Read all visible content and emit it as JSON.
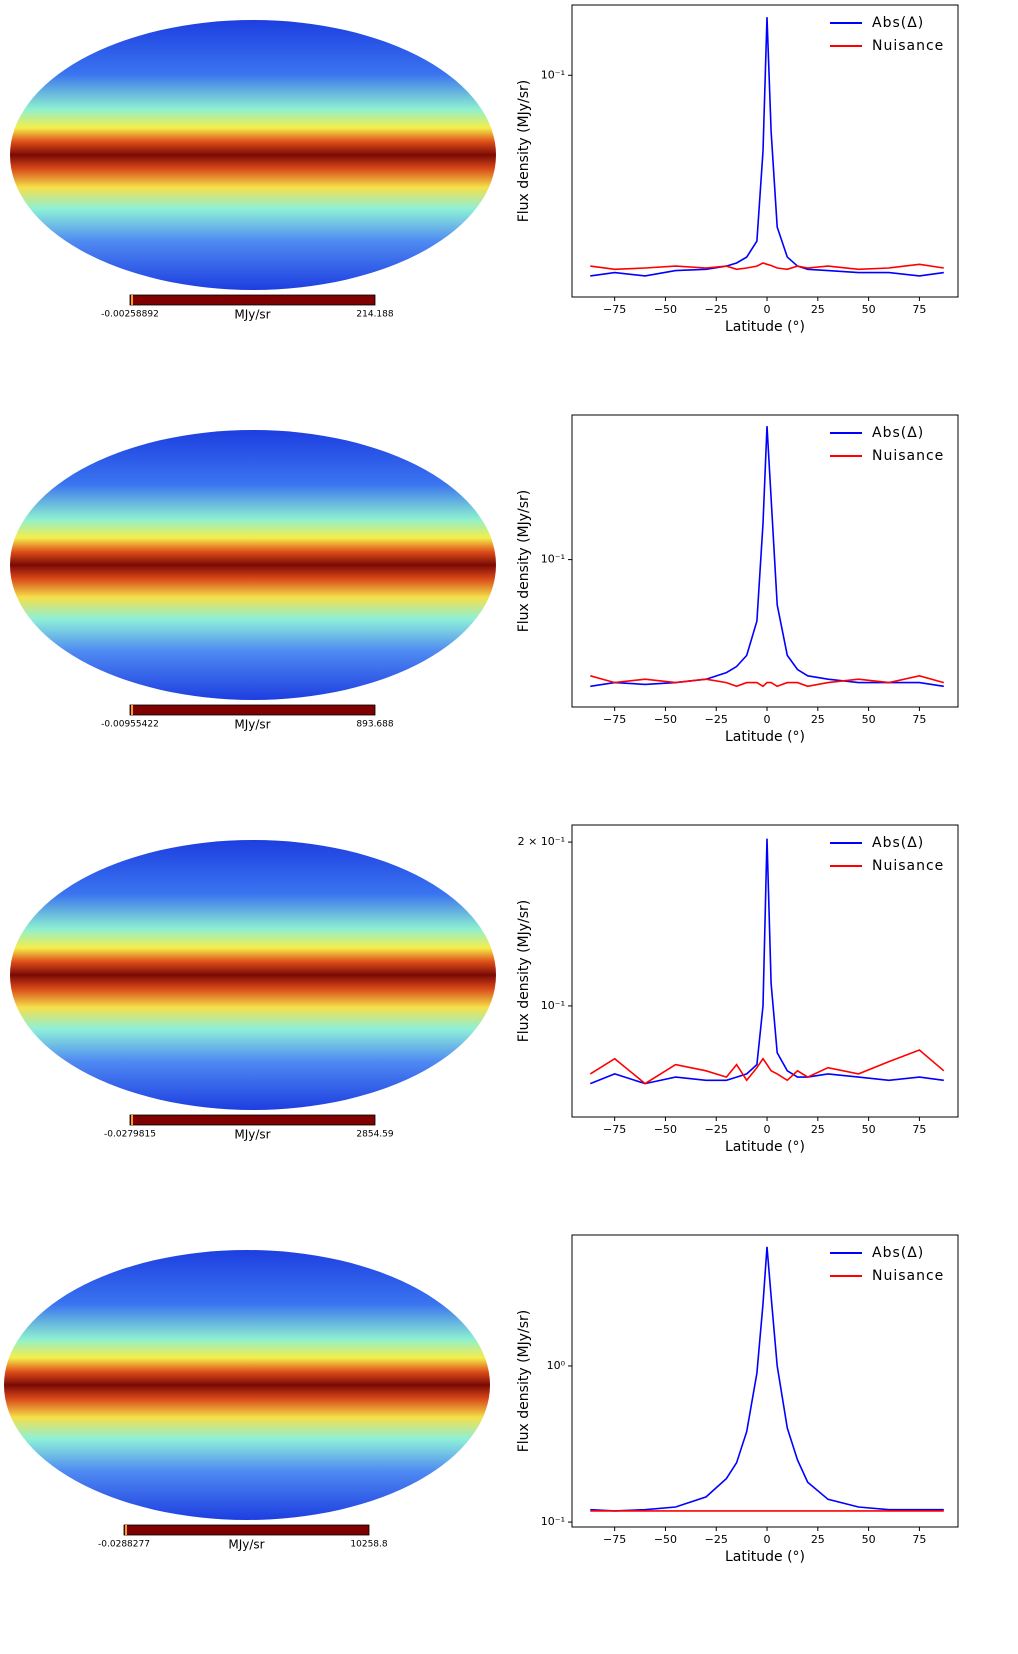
{
  "maps": [
    {
      "min_label": "-0.00258892",
      "unit": "MJy/sr",
      "max_label": "214.188"
    },
    {
      "min_label": "-0.00955422",
      "unit": "MJy/sr",
      "max_label": "893.688"
    },
    {
      "min_label": "-0.0279815",
      "unit": "MJy/sr",
      "max_label": "2854.59"
    },
    {
      "min_label": "-0.0288277",
      "unit": "MJy/sr",
      "max_label": "10258.8"
    }
  ],
  "chart_data": [
    {
      "type": "line",
      "log_y": true,
      "legend": "upper right",
      "xlabel": "Latitude (°)",
      "ylabel": "Flux density (MJy/sr)",
      "x": [
        -87,
        -75,
        -60,
        -45,
        -30,
        -20,
        -15,
        -10,
        -5,
        -2,
        0,
        2,
        5,
        10,
        15,
        20,
        30,
        45,
        60,
        75,
        87
      ],
      "xlim": [
        -96,
        94
      ],
      "xticks": [
        {
          "value": -75,
          "label": "−75"
        },
        {
          "value": -50,
          "label": "−50"
        },
        {
          "value": -25,
          "label": "−25"
        },
        0,
        25,
        50,
        75
      ],
      "ylim": [
        0.0132,
        0.19
      ],
      "yticks": [
        {
          "value": 0.1,
          "label": "10⁻¹"
        }
      ],
      "series": [
        {
          "name": "Abs(Δ)",
          "color": "#0000ff",
          "values": [
            0.016,
            0.0165,
            0.016,
            0.0168,
            0.017,
            0.0175,
            0.018,
            0.019,
            0.022,
            0.05,
            0.17,
            0.06,
            0.025,
            0.019,
            0.0175,
            0.017,
            0.0168,
            0.0165,
            0.0165,
            0.016,
            0.0165
          ]
        },
        {
          "name": "Nuisance",
          "color": "#ff0000",
          "values": [
            0.0175,
            0.017,
            0.0172,
            0.0175,
            0.0172,
            0.0175,
            0.017,
            0.0172,
            0.0175,
            0.018,
            0.0178,
            0.0176,
            0.0172,
            0.017,
            0.0175,
            0.0172,
            0.0175,
            0.017,
            0.0172,
            0.0178,
            0.0172
          ]
        }
      ]
    },
    {
      "type": "line",
      "log_y": true,
      "legend": "upper right",
      "xlabel": "Latitude (°)",
      "ylabel": "Flux density (MJy/sr)",
      "x": [
        -87,
        -75,
        -60,
        -45,
        -30,
        -20,
        -15,
        -10,
        -5,
        -2,
        0,
        2,
        5,
        10,
        15,
        20,
        30,
        45,
        60,
        75,
        87
      ],
      "xlim": [
        -96,
        94
      ],
      "xticks": [
        {
          "value": -75,
          "label": "−75"
        },
        {
          "value": -50,
          "label": "−50"
        },
        {
          "value": -25,
          "label": "−25"
        },
        0,
        25,
        50,
        75
      ],
      "ylim": [
        0.019,
        0.51
      ],
      "yticks": [
        {
          "value": 0.1,
          "label": "10⁻¹"
        }
      ],
      "series": [
        {
          "name": "Abs(Δ)",
          "color": "#0000ff",
          "values": [
            0.024,
            0.025,
            0.0245,
            0.025,
            0.026,
            0.028,
            0.03,
            0.034,
            0.05,
            0.15,
            0.45,
            0.2,
            0.06,
            0.034,
            0.029,
            0.027,
            0.026,
            0.025,
            0.025,
            0.025,
            0.024
          ]
        },
        {
          "name": "Nuisance",
          "color": "#ff0000",
          "values": [
            0.027,
            0.025,
            0.026,
            0.025,
            0.026,
            0.025,
            0.024,
            0.025,
            0.025,
            0.024,
            0.025,
            0.025,
            0.024,
            0.025,
            0.025,
            0.024,
            0.025,
            0.026,
            0.025,
            0.027,
            0.025
          ]
        }
      ]
    },
    {
      "type": "line",
      "log_y": true,
      "legend": "upper right",
      "xlabel": "Latitude (°)",
      "ylabel": "Flux density (MJy/sr)",
      "x": [
        -87,
        -75,
        -60,
        -45,
        -30,
        -20,
        -15,
        -10,
        -5,
        -2,
        0,
        2,
        5,
        10,
        15,
        20,
        30,
        45,
        60,
        75,
        87
      ],
      "xlim": [
        -96,
        94
      ],
      "xticks": [
        {
          "value": -75,
          "label": "−75"
        },
        {
          "value": -50,
          "label": "−50"
        },
        {
          "value": -25,
          "label": "−25"
        },
        0,
        25,
        50,
        75
      ],
      "ylim": [
        0.0625,
        0.215
      ],
      "yticks": [
        {
          "value": 0.2,
          "label": "2 × 10⁻¹"
        },
        {
          "value": 0.1,
          "label": "10⁻¹"
        }
      ],
      "series": [
        {
          "name": "Abs(Δ)",
          "color": "#0000ff",
          "values": [
            0.072,
            0.075,
            0.072,
            0.074,
            0.073,
            0.073,
            0.074,
            0.075,
            0.078,
            0.1,
            0.203,
            0.11,
            0.082,
            0.076,
            0.074,
            0.074,
            0.075,
            0.074,
            0.073,
            0.074,
            0.073
          ]
        },
        {
          "name": "Nuisance",
          "color": "#ff0000",
          "values": [
            0.075,
            0.08,
            0.072,
            0.078,
            0.076,
            0.074,
            0.078,
            0.073,
            0.077,
            0.08,
            0.078,
            0.076,
            0.075,
            0.073,
            0.076,
            0.074,
            0.077,
            0.075,
            0.079,
            0.083,
            0.076
          ]
        }
      ]
    },
    {
      "type": "line",
      "log_y": true,
      "legend": "upper right",
      "xlabel": "Latitude (°)",
      "ylabel": "Flux density (MJy/sr)",
      "x": [
        -87,
        -75,
        -60,
        -45,
        -30,
        -20,
        -15,
        -10,
        -5,
        -2,
        0,
        2,
        5,
        10,
        15,
        20,
        30,
        45,
        60,
        75,
        87
      ],
      "xlim": [
        -96,
        94
      ],
      "xticks": [
        {
          "value": -75,
          "label": "−75"
        },
        {
          "value": -50,
          "label": "−50"
        },
        {
          "value": -25,
          "label": "−25"
        },
        0,
        25,
        50,
        75
      ],
      "ylim": [
        0.093,
        6.9
      ],
      "yticks": [
        {
          "value": 1,
          "label": "10⁰"
        },
        {
          "value": 0.1,
          "label": "10⁻¹"
        }
      ],
      "series": [
        {
          "name": "Abs(Δ)",
          "color": "#0000ff",
          "values": [
            0.12,
            0.118,
            0.12,
            0.125,
            0.145,
            0.19,
            0.24,
            0.38,
            0.9,
            2.5,
            5.8,
            2.8,
            1.0,
            0.4,
            0.25,
            0.18,
            0.14,
            0.125,
            0.12,
            0.12,
            0.12
          ]
        },
        {
          "name": "Nuisance",
          "color": "#ff0000",
          "values": [
            0.118,
            0.118,
            0.118,
            0.118,
            0.118,
            0.118,
            0.118,
            0.118,
            0.118,
            0.118,
            0.118,
            0.118,
            0.118,
            0.118,
            0.118,
            0.118,
            0.118,
            0.118,
            0.118,
            0.118,
            0.118
          ]
        }
      ]
    }
  ]
}
